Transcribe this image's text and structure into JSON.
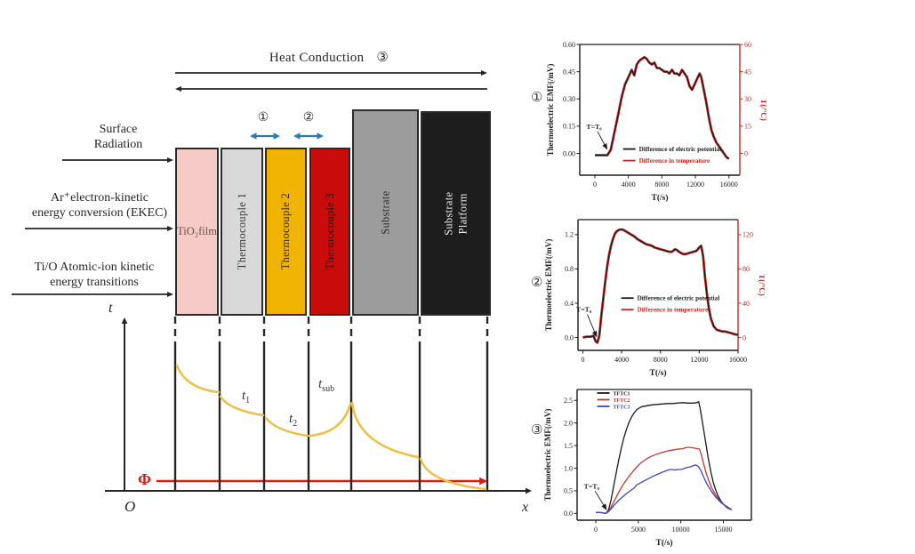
{
  "figure": {
    "colors": {
      "line_dark": "#262626",
      "arrow_blue": "#2e79b9",
      "flux_red": "#dd1a15",
      "profile_yellow": "#ecc04b"
    },
    "heat_conduction": {
      "label": "Heat Conduction",
      "number": "③"
    },
    "incidence_labels": [
      {
        "line1": "Surface",
        "line2": "Radiation"
      },
      {
        "line1": "Ar⁺electron-kinetic",
        "line2": "energy conversion (EKEC)"
      },
      {
        "line1": "Ti/O Atomic-ion kinetic",
        "line2": "energy transitions"
      }
    ],
    "gap_markers": [
      {
        "number": "①"
      },
      {
        "number": "②"
      }
    ],
    "blocks": [
      {
        "lines": [
          "TiO₂",
          "film"
        ],
        "color": "#f6cac6",
        "text_color": "#6b4f49",
        "orientation": "horizontal"
      },
      {
        "lines": [
          "Thermocouple 1"
        ],
        "color": "#d9d9d9",
        "text_color": "#3a3a3a",
        "orientation": "vertical"
      },
      {
        "lines": [
          "Thermocouple 2"
        ],
        "color": "#f0b301",
        "text_color": "#33291a",
        "orientation": "vertical"
      },
      {
        "lines": [
          "Thermocouple 3"
        ],
        "color": "#c90b0b",
        "text_color": "#1c0d0d",
        "orientation": "vertical"
      },
      {
        "lines": [
          "Substrate"
        ],
        "color": "#9c9c9c",
        "text_color": "#2e2e2e",
        "orientation": "vertical"
      },
      {
        "lines": [
          "Substrate",
          "Platform"
        ],
        "color": "#1d1d1d",
        "text_color": "#e9e9e9",
        "orientation": "vertical"
      }
    ],
    "profile_plot": {
      "t_axis": "t",
      "x_axis": "x",
      "origin": "O",
      "flux": "Φ",
      "temp_labels": [
        {
          "base": "t",
          "sub": "1"
        },
        {
          "base": "t",
          "sub": "2"
        },
        {
          "base": "t",
          "sub": "sub"
        }
      ]
    }
  },
  "chart_data": [
    {
      "number": "①",
      "type": "line",
      "ylabel": "Thermoelectric EMF(/mV)",
      "ylabel_right": "T(/°C)",
      "xlabel": "T(/s)",
      "xlim": [
        -1800,
        17300
      ],
      "xticks": [
        0,
        4000,
        8000,
        12000,
        16000
      ],
      "ylim": [
        -0.12,
        0.6
      ],
      "yticks": [
        0.0,
        0.15,
        0.3,
        0.45,
        0.6
      ],
      "ytick_labels": [
        "0.00",
        "0.15",
        "0.30",
        "0.45",
        "0.60"
      ],
      "ylim_right": [
        -12,
        60
      ],
      "yticks_right": [
        0,
        15,
        30,
        45,
        60
      ],
      "right_axis_color": "#c22a25",
      "annotation": {
        "text": "T=T₀",
        "tx": -100,
        "ty": 0.135,
        "ax": 1500,
        "ay": 0.01
      },
      "legend": {
        "fx": 0.27,
        "fy": 0.8,
        "dy": 13,
        "font": 7.2,
        "entries": [
          {
            "label": "Difference of electric potential",
            "color": "#1a1a1a"
          },
          {
            "label": "Difference in temperature",
            "color": "#c22a25"
          }
        ]
      },
      "series": [
        {
          "name": "Difference in temperature",
          "color": "#c22a25",
          "width": 2.8,
          "axis": "right",
          "x": [
            0,
            800,
            1500,
            1900,
            2400,
            2800,
            3200,
            3600,
            4000,
            4400,
            4700,
            5000,
            5300,
            5600,
            5900,
            6200,
            6500,
            6800,
            7100,
            7400,
            7700,
            8000,
            8300,
            8600,
            8900,
            9200,
            9500,
            9800,
            10100,
            10400,
            10700,
            11000,
            11300,
            11600,
            11900,
            12200,
            12500,
            12700,
            13000,
            13300,
            13600,
            13900,
            14200,
            14500,
            14800,
            15100,
            15400,
            15700,
            16000
          ],
          "y": [
            -1,
            -1,
            -1,
            2,
            13,
            22,
            31,
            38,
            42,
            46,
            43,
            49,
            51,
            52,
            53,
            52,
            50,
            49,
            50,
            47,
            47,
            46,
            45,
            45,
            44,
            46,
            44,
            44,
            43,
            46,
            44,
            42,
            37,
            35,
            38,
            41,
            44,
            42,
            35,
            28,
            20,
            13,
            9,
            6,
            4,
            2,
            0,
            -2,
            -3
          ]
        },
        {
          "name": "Difference of electric potential",
          "color": "#1a1a1a",
          "width": 1.2,
          "axis": "left",
          "x": [
            0,
            800,
            1500,
            1900,
            2400,
            2800,
            3200,
            3600,
            4000,
            4400,
            4700,
            5000,
            5300,
            5600,
            5900,
            6200,
            6500,
            6800,
            7100,
            7400,
            7700,
            8000,
            8300,
            8600,
            8900,
            9200,
            9500,
            9800,
            10100,
            10400,
            10700,
            11000,
            11300,
            11600,
            11900,
            12200,
            12500,
            12700,
            13000,
            13300,
            13600,
            13900,
            14200,
            14500,
            14800,
            15100,
            15400,
            15700,
            16000
          ],
          "y": [
            -0.01,
            -0.01,
            -0.01,
            0.02,
            0.13,
            0.22,
            0.31,
            0.38,
            0.42,
            0.46,
            0.43,
            0.49,
            0.51,
            0.52,
            0.53,
            0.52,
            0.5,
            0.49,
            0.5,
            0.47,
            0.47,
            0.46,
            0.45,
            0.45,
            0.44,
            0.46,
            0.44,
            0.44,
            0.43,
            0.46,
            0.44,
            0.42,
            0.37,
            0.35,
            0.38,
            0.41,
            0.44,
            0.42,
            0.35,
            0.28,
            0.2,
            0.13,
            0.09,
            0.06,
            0.04,
            0.02,
            0.0,
            -0.02,
            -0.03
          ]
        }
      ]
    },
    {
      "number": "②",
      "type": "line",
      "ylabel": "Thermoelectric EMF(/mV)",
      "ylabel_right": "T(/°C)",
      "xlabel": "T(/s)",
      "xlim": [
        -500,
        16000
      ],
      "xticks": [
        0,
        4000,
        8000,
        12000,
        16000
      ],
      "ylim": [
        -0.15,
        1.375
      ],
      "yticks": [
        0.0,
        0.4,
        0.8,
        1.2
      ],
      "ytick_labels": [
        "0.0",
        "0.4",
        "0.8",
        "1.2"
      ],
      "ylim_right": [
        -15,
        137.5
      ],
      "yticks_right": [
        0,
        40,
        80,
        120
      ],
      "right_axis_color": "#c22a25",
      "annotation": {
        "text": "T=T₀",
        "tx": 100,
        "ty": 0.3,
        "ax": 1450,
        "ay": -0.02
      },
      "legend": {
        "fx": 0.27,
        "fy": 0.6,
        "dy": 13,
        "font": 7.2,
        "entries": [
          {
            "label": "Difference of electric potential",
            "color": "#1a1a1a"
          },
          {
            "label": "Difference in temperature",
            "color": "#c22a25"
          }
        ]
      },
      "series": [
        {
          "name": "Difference in temperature",
          "color": "#c22a25",
          "width": 2.8,
          "axis": "right",
          "x": [
            0,
            400,
            800,
            1100,
            1300,
            1500,
            1700,
            1900,
            2100,
            2300,
            2500,
            2700,
            2900,
            3100,
            3300,
            3500,
            3800,
            4100,
            4400,
            4700,
            5000,
            5300,
            5600,
            5900,
            6200,
            6500,
            6800,
            7100,
            7400,
            7700,
            8000,
            8300,
            8600,
            8900,
            9200,
            9500,
            9700,
            9900,
            10200,
            10500,
            10800,
            11100,
            11400,
            11700,
            12000,
            12200,
            12400,
            12600,
            12800,
            13000,
            13200,
            13500,
            13800,
            14100,
            14400,
            14700,
            15000,
            15300,
            15600,
            16000
          ],
          "y": [
            0,
            1,
            1,
            2,
            -4,
            -6,
            2,
            25,
            45,
            64,
            82,
            96,
            107,
            115,
            121,
            124,
            126,
            126,
            124,
            122,
            120,
            118,
            115,
            113,
            111,
            109,
            108,
            107,
            105,
            104,
            103,
            102,
            101,
            100,
            100,
            103,
            102,
            100,
            98,
            97,
            98,
            99,
            100,
            101,
            105,
            107,
            95,
            70,
            50,
            33,
            22,
            13,
            9,
            8,
            7,
            7,
            6,
            5,
            4,
            3
          ]
        },
        {
          "name": "Difference of electric potential",
          "color": "#1a1a1a",
          "width": 1.2,
          "axis": "left",
          "x": [
            0,
            400,
            800,
            1100,
            1300,
            1500,
            1700,
            1900,
            2100,
            2300,
            2500,
            2700,
            2900,
            3100,
            3300,
            3500,
            3800,
            4100,
            4400,
            4700,
            5000,
            5300,
            5600,
            5900,
            6200,
            6500,
            6800,
            7100,
            7400,
            7700,
            8000,
            8300,
            8600,
            8900,
            9200,
            9500,
            9700,
            9900,
            10200,
            10500,
            10800,
            11100,
            11400,
            11700,
            12000,
            12200,
            12400,
            12600,
            12800,
            13000,
            13200,
            13500,
            13800,
            14100,
            14400,
            14700,
            15000,
            15300,
            15600,
            16000
          ],
          "y": [
            0.0,
            0.01,
            0.01,
            0.02,
            -0.04,
            -0.06,
            0.02,
            0.25,
            0.45,
            0.64,
            0.82,
            0.96,
            1.07,
            1.15,
            1.21,
            1.24,
            1.26,
            1.26,
            1.24,
            1.22,
            1.2,
            1.18,
            1.15,
            1.13,
            1.11,
            1.09,
            1.08,
            1.07,
            1.05,
            1.04,
            1.03,
            1.02,
            1.01,
            1.0,
            1.0,
            1.03,
            1.02,
            1.0,
            0.98,
            0.97,
            0.98,
            0.99,
            1.0,
            1.01,
            1.05,
            1.07,
            0.95,
            0.7,
            0.5,
            0.33,
            0.22,
            0.13,
            0.09,
            0.08,
            0.07,
            0.07,
            0.06,
            0.05,
            0.04,
            0.03
          ]
        }
      ]
    },
    {
      "number": "③",
      "type": "line",
      "ylabel": "Thermoelectric EMF(/mV)",
      "xlabel": "T(/s)",
      "xlim": [
        -2200,
        18300
      ],
      "xticks": [
        0,
        5000,
        10000,
        15000
      ],
      "ylim": [
        -0.15,
        2.74
      ],
      "yticks": [
        0.0,
        0.5,
        1.0,
        1.5,
        2.0,
        2.5
      ],
      "ytick_labels": [
        "0.0",
        "0.5",
        "1.0",
        "1.5",
        "2.0",
        "2.5"
      ],
      "annotation": {
        "text": "T=T₀",
        "tx": -500,
        "ty": 0.55,
        "ax": 1300,
        "ay": 0.03
      },
      "legend": {
        "fx": 0.115,
        "fy": 0.027,
        "dy": 7.5,
        "font": 6,
        "entries": [
          {
            "label": "TFTC1",
            "color": "#1a1a1a"
          },
          {
            "label": "TFTC2",
            "color": "#c0392b"
          },
          {
            "label": "TFTC3",
            "color": "#4048b8"
          }
        ]
      },
      "series": [
        {
          "name": "TFTC1",
          "color": "#1a1a1a",
          "width": 1.3,
          "axis": "left",
          "x": [
            0,
            600,
            1200,
            1500,
            1800,
            2100,
            2400,
            2700,
            3000,
            3300,
            3600,
            3900,
            4200,
            4500,
            4800,
            5100,
            5400,
            5700,
            6000,
            6600,
            7200,
            7800,
            8400,
            9000,
            9600,
            10200,
            10800,
            11400,
            11900,
            12100,
            12300,
            12600,
            12900,
            13200,
            13500,
            13800,
            14100,
            14400,
            14700,
            15000,
            15300,
            15600,
            16000
          ],
          "y": [
            0.02,
            0.02,
            0.0,
            0.08,
            0.3,
            0.6,
            0.9,
            1.18,
            1.44,
            1.67,
            1.86,
            2.01,
            2.13,
            2.22,
            2.29,
            2.33,
            2.36,
            2.37,
            2.38,
            2.4,
            2.41,
            2.42,
            2.43,
            2.43,
            2.44,
            2.45,
            2.44,
            2.44,
            2.45,
            2.47,
            2.3,
            1.95,
            1.6,
            1.25,
            0.95,
            0.7,
            0.52,
            0.38,
            0.28,
            0.21,
            0.15,
            0.11,
            0.08
          ]
        },
        {
          "name": "TFTC2",
          "color": "#c0392b",
          "width": 1.3,
          "axis": "left",
          "x": [
            0,
            600,
            1200,
            1500,
            1800,
            2100,
            2400,
            2700,
            3000,
            3300,
            3600,
            3900,
            4200,
            4500,
            4800,
            5100,
            5400,
            5700,
            6000,
            6600,
            7200,
            7800,
            8400,
            9000,
            9600,
            10200,
            10500,
            10800,
            11100,
            11400,
            11700,
            12000,
            12200,
            12400,
            12700,
            13000,
            13300,
            13600,
            13900,
            14200,
            14500,
            14800,
            15100,
            15400,
            15700,
            16000
          ],
          "y": [
            0.02,
            0.02,
            0.0,
            0.05,
            0.14,
            0.25,
            0.36,
            0.47,
            0.57,
            0.66,
            0.74,
            0.82,
            0.89,
            0.96,
            1.02,
            1.08,
            1.13,
            1.17,
            1.21,
            1.27,
            1.31,
            1.35,
            1.38,
            1.4,
            1.42,
            1.43,
            1.45,
            1.46,
            1.46,
            1.45,
            1.44,
            1.43,
            1.42,
            1.3,
            1.08,
            0.88,
            0.72,
            0.58,
            0.47,
            0.38,
            0.3,
            0.24,
            0.19,
            0.15,
            0.11,
            0.08
          ]
        },
        {
          "name": "TFTC3",
          "color": "#4048b8",
          "width": 1.3,
          "axis": "left",
          "x": [
            0,
            600,
            1200,
            1500,
            1800,
            2100,
            2400,
            2700,
            3000,
            3300,
            3600,
            3900,
            4200,
            4500,
            4800,
            5100,
            5400,
            5700,
            6000,
            6600,
            7200,
            7800,
            8400,
            8700,
            9000,
            9300,
            9600,
            9900,
            10200,
            10500,
            10800,
            11100,
            11400,
            11700,
            11900,
            12100,
            12400,
            12700,
            13000,
            13300,
            13600,
            13900,
            14200,
            14500,
            14800,
            15100,
            15400,
            15700,
            16000
          ],
          "y": [
            0.02,
            0.02,
            0.0,
            0.04,
            0.1,
            0.17,
            0.23,
            0.29,
            0.34,
            0.39,
            0.44,
            0.48,
            0.52,
            0.56,
            0.63,
            0.66,
            0.69,
            0.72,
            0.75,
            0.81,
            0.86,
            0.91,
            0.95,
            0.97,
            0.97,
            0.96,
            0.97,
            0.97,
            0.98,
            1.0,
            1.02,
            1.03,
            1.05,
            1.07,
            1.06,
            1.03,
            0.93,
            0.8,
            0.68,
            0.58,
            0.49,
            0.41,
            0.34,
            0.28,
            0.23,
            0.19,
            0.15,
            0.12,
            0.08
          ]
        }
      ]
    }
  ]
}
